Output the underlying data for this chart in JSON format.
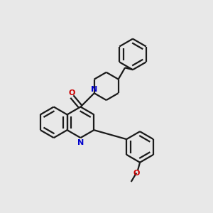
{
  "background_color": "#e8e8e8",
  "bond_color": "#1a1a1a",
  "N_color": "#0000cc",
  "O_color": "#cc0000",
  "line_width": 1.6,
  "dbo": 0.055,
  "fig_width": 3.0,
  "fig_height": 3.0,
  "xlim": [
    0.0,
    6.0
  ],
  "ylim": [
    0.0,
    6.0
  ],
  "r": 0.44
}
